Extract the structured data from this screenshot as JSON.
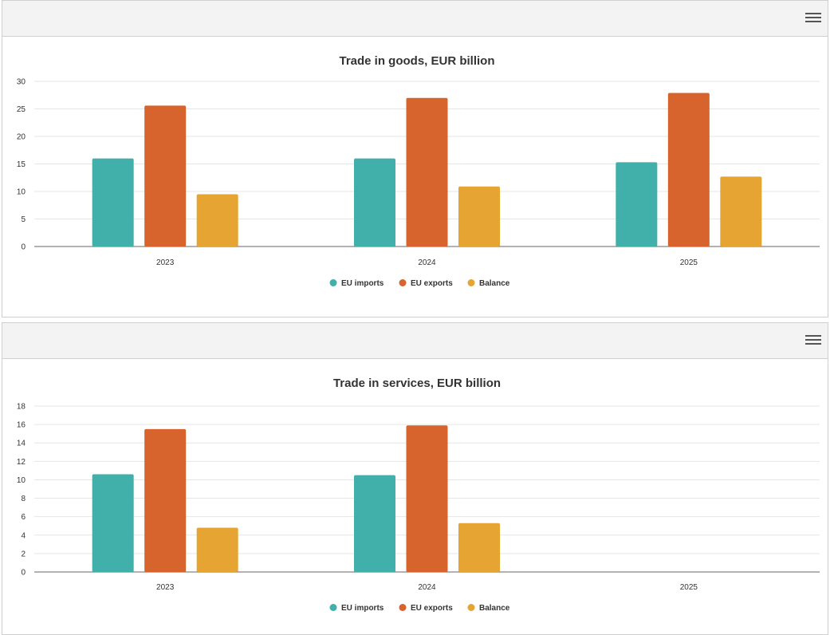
{
  "icons": {
    "menu": "hamburger-menu-icon"
  },
  "colors": {
    "imports": "#41afaa",
    "exports": "#d7642d",
    "balance": "#e6a532",
    "grid": "#e6e6e6",
    "axis": "#666666"
  },
  "chart_data": [
    {
      "type": "bar",
      "title": "Trade in goods, EUR billion",
      "categories": [
        "2023",
        "2024",
        "2025"
      ],
      "ylim": [
        0,
        30
      ],
      "yticks": [
        0,
        5,
        10,
        15,
        20,
        25,
        30
      ],
      "grid": true,
      "legend": "bottom-center",
      "series": [
        {
          "name": "EU imports",
          "values": [
            16.0,
            16.0,
            15.3
          ]
        },
        {
          "name": "EU exports",
          "values": [
            25.6,
            27.0,
            27.9
          ]
        },
        {
          "name": "Balance",
          "values": [
            9.5,
            10.9,
            12.7
          ]
        }
      ]
    },
    {
      "type": "bar",
      "title": "Trade in services, EUR billion",
      "categories": [
        "2023",
        "2024",
        "2025"
      ],
      "ylim": [
        0,
        18
      ],
      "yticks": [
        0,
        2,
        4,
        6,
        8,
        10,
        12,
        14,
        16,
        18
      ],
      "grid": true,
      "legend": "bottom-center",
      "series": [
        {
          "name": "EU imports",
          "values": [
            10.6,
            10.5,
            null
          ]
        },
        {
          "name": "EU exports",
          "values": [
            15.5,
            15.9,
            null
          ]
        },
        {
          "name": "Balance",
          "values": [
            4.8,
            5.3,
            null
          ]
        }
      ]
    }
  ]
}
